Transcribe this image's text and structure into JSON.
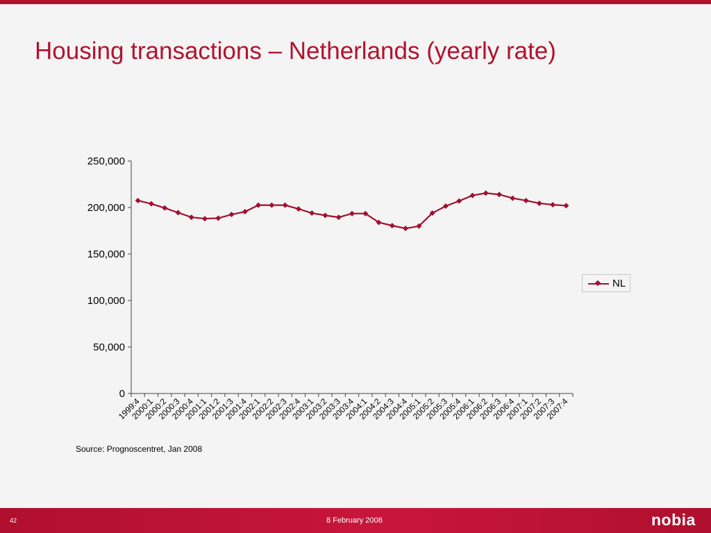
{
  "slide": {
    "title": "Housing transactions – Netherlands (yearly rate)",
    "source": "Source: Prognoscentret, Jan 2008",
    "footer_date": "8 February 2008",
    "slide_number": "42",
    "logo_text": "nobia"
  },
  "colors": {
    "accent": "#b3122e",
    "series": "#a01030",
    "background": "#f4f4f4"
  },
  "chart_data": {
    "type": "line",
    "title": "",
    "xlabel": "",
    "ylabel": "",
    "ylim": [
      0,
      250000
    ],
    "yticks": [
      "0",
      "50,000",
      "100,000",
      "150,000",
      "200,000",
      "250,000"
    ],
    "ytick_values": [
      0,
      50000,
      100000,
      150000,
      200000,
      250000
    ],
    "grid": false,
    "legend_position": "right",
    "categories": [
      "1999:4",
      "2000:1",
      "2000:2",
      "2000:3",
      "2000:4",
      "2001:1",
      "2001:2",
      "2001:3",
      "2001:4",
      "2002:1",
      "2002:2",
      "2002:3",
      "2002:4",
      "2003:1",
      "2003:2",
      "2003:3",
      "2003:4",
      "2004:1",
      "2004:2",
      "2004:3",
      "2004:4",
      "2005:1",
      "2005:2",
      "2005:3",
      "2005:4",
      "2006:1",
      "2006:2",
      "2006:3",
      "2006:4",
      "2007:1",
      "2007:2",
      "2007:3",
      "2007:4"
    ],
    "series": [
      {
        "name": "NL",
        "values": [
          207500,
          204000,
          199500,
          194500,
          189500,
          188000,
          188500,
          192500,
          195500,
          202500,
          202500,
          202500,
          198500,
          194000,
          191500,
          189500,
          193500,
          193500,
          184000,
          180500,
          177500,
          180000,
          194000,
          201500,
          207000,
          213000,
          215500,
          214000,
          210000,
          207500,
          204500,
          203000,
          202000
        ]
      }
    ]
  }
}
